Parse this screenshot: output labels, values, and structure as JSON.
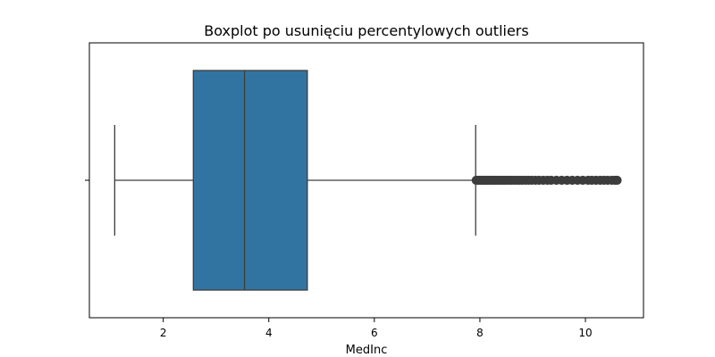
{
  "chart_data": {
    "type": "box",
    "title": "Boxplot po usunięciu percentylowych outliers",
    "xlabel": "MedInc",
    "ylabel": "",
    "orientation": "horizontal",
    "xlim": [
      0.6,
      11.1
    ],
    "xticks": [
      2,
      4,
      6,
      8,
      10
    ],
    "grid": false,
    "legend": "none",
    "colors": {
      "box_fill": "#3274a1",
      "line": "#3d3d3d"
    },
    "box": {
      "whisker_low": 1.08,
      "q1": 2.57,
      "median": 3.54,
      "q3": 4.73,
      "whisker_high": 7.92,
      "outliers": [
        7.93,
        7.95,
        7.98,
        8.0,
        8.02,
        8.05,
        8.08,
        8.1,
        8.13,
        8.16,
        8.2,
        8.23,
        8.26,
        8.3,
        8.34,
        8.38,
        8.42,
        8.46,
        8.5,
        8.55,
        8.6,
        8.65,
        8.7,
        8.75,
        8.8,
        8.86,
        8.92,
        8.98,
        9.05,
        9.12,
        9.2,
        9.28,
        9.35,
        9.45,
        9.55,
        9.65,
        9.75,
        9.85,
        9.95,
        10.05,
        10.12,
        10.2,
        10.28,
        10.35,
        10.42,
        10.5,
        10.56,
        10.6
      ]
    }
  }
}
